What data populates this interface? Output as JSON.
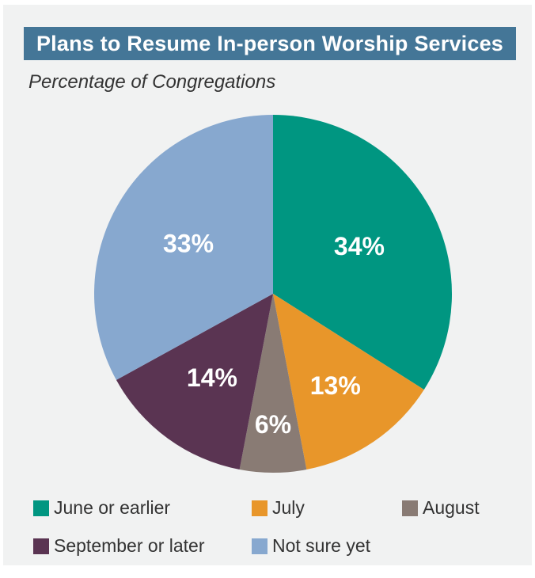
{
  "chart_data": {
    "type": "pie",
    "title": "Plans to Resume In-person Worship Services",
    "subtitle": "Percentage of Congregations",
    "slices": [
      {
        "label": "June or earlier",
        "value": 34,
        "display": "34%",
        "color": "#009681"
      },
      {
        "label": "July",
        "value": 13,
        "display": "13%",
        "color": "#e8962a"
      },
      {
        "label": "August",
        "value": 6,
        "display": "6%",
        "color": "#897b74"
      },
      {
        "label": "September or later",
        "value": 14,
        "display": "14%",
        "color": "#5a3452"
      },
      {
        "label": "Not sure yet",
        "value": 33,
        "display": "33%",
        "color": "#87a8cf"
      }
    ],
    "legend_position": "bottom"
  },
  "colors": {
    "panel_background": "#f1f2f2",
    "title_background": "#447697",
    "title_text": "#ffffff"
  }
}
